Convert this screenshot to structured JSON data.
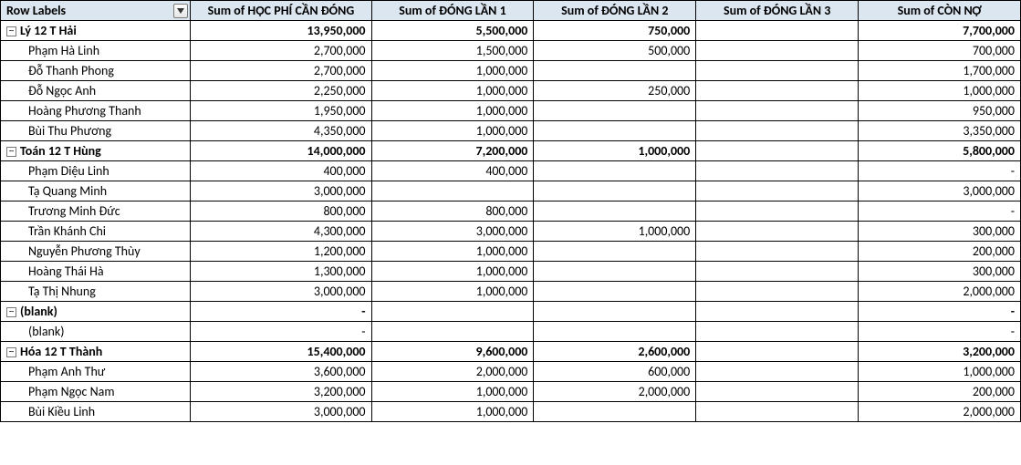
{
  "headers": {
    "row_labels": "Row Labels",
    "col1": "Sum of HỌC PHÍ CẦN ĐÓNG",
    "col2": "Sum of ĐÓNG LẦN 1",
    "col3": "Sum of ĐÓNG LẦN 2",
    "col4": "Sum of ĐÓNG LẦN 3",
    "col5": "Sum of CÒN NỢ"
  },
  "colors": {
    "header_bg": "#dce6f1",
    "border": "#000000",
    "text": "#000000"
  },
  "groups": [
    {
      "label": "Lý 12 T Hải",
      "collapsible": true,
      "v1": "13,950,000",
      "v2": "5,500,000",
      "v3": "750,000",
      "v4": "",
      "v5": "7,700,000",
      "children": [
        {
          "label": "Phạm Hà Linh",
          "v1": "2,700,000",
          "v2": "1,500,000",
          "v3": "500,000",
          "v4": "",
          "v5": "700,000"
        },
        {
          "label": "Đỗ Thanh Phong",
          "v1": "2,700,000",
          "v2": "1,000,000",
          "v3": "",
          "v4": "",
          "v5": "1,700,000"
        },
        {
          "label": "Đỗ Ngọc Anh",
          "v1": "2,250,000",
          "v2": "1,000,000",
          "v3": "250,000",
          "v4": "",
          "v5": "1,000,000"
        },
        {
          "label": "Hoàng Phương Thanh",
          "v1": "1,950,000",
          "v2": "1,000,000",
          "v3": "",
          "v4": "",
          "v5": "950,000"
        },
        {
          "label": "Bùi Thu Phương",
          "v1": "4,350,000",
          "v2": "1,000,000",
          "v3": "",
          "v4": "",
          "v5": "3,350,000"
        }
      ]
    },
    {
      "label": "Toán 12 T Hùng",
      "collapsible": true,
      "v1": "14,000,000",
      "v2": "7,200,000",
      "v3": "1,000,000",
      "v4": "",
      "v5": "5,800,000",
      "children": [
        {
          "label": "Phạm Diệu Linh",
          "v1": "400,000",
          "v2": "400,000",
          "v3": "",
          "v4": "",
          "v5": "-"
        },
        {
          "label": "Tạ Quang Minh",
          "v1": "3,000,000",
          "v2": "",
          "v3": "",
          "v4": "",
          "v5": "3,000,000"
        },
        {
          "label": "Trương Minh Đức",
          "v1": "800,000",
          "v2": "800,000",
          "v3": "",
          "v4": "",
          "v5": "-"
        },
        {
          "label": "Trần Khánh Chi",
          "v1": "4,300,000",
          "v2": "3,000,000",
          "v3": "1,000,000",
          "v4": "",
          "v5": "300,000"
        },
        {
          "label": "Nguyễn Phương Thùy",
          "v1": "1,200,000",
          "v2": "1,000,000",
          "v3": "",
          "v4": "",
          "v5": "200,000"
        },
        {
          "label": "Hoàng Thái Hà",
          "v1": "1,300,000",
          "v2": "1,000,000",
          "v3": "",
          "v4": "",
          "v5": "300,000"
        },
        {
          "label": "Tạ Thị Nhung",
          "v1": "3,000,000",
          "v2": "1,000,000",
          "v3": "",
          "v4": "",
          "v5": "2,000,000"
        }
      ]
    },
    {
      "label": "(blank)",
      "collapsible": true,
      "v1": "-",
      "v2": "",
      "v3": "",
      "v4": "",
      "v5": "-",
      "children": [
        {
          "label": "(blank)",
          "v1": "-",
          "v2": "",
          "v3": "",
          "v4": "",
          "v5": "-"
        }
      ]
    },
    {
      "label": "Hóa 12 T Thành",
      "collapsible": true,
      "v1": "15,400,000",
      "v2": "9,600,000",
      "v3": "2,600,000",
      "v4": "",
      "v5": "3,200,000",
      "children": [
        {
          "label": "Phạm Anh Thư",
          "v1": "3,600,000",
          "v2": "2,000,000",
          "v3": "600,000",
          "v4": "",
          "v5": "1,000,000"
        },
        {
          "label": "Phạm Ngọc Nam",
          "v1": "3,200,000",
          "v2": "1,000,000",
          "v3": "2,000,000",
          "v4": "",
          "v5": "200,000"
        },
        {
          "label": "Bùi Kiều Linh",
          "v1": "3,000,000",
          "v2": "1,000,000",
          "v3": "",
          "v4": "",
          "v5": "2,000,000"
        }
      ]
    }
  ]
}
